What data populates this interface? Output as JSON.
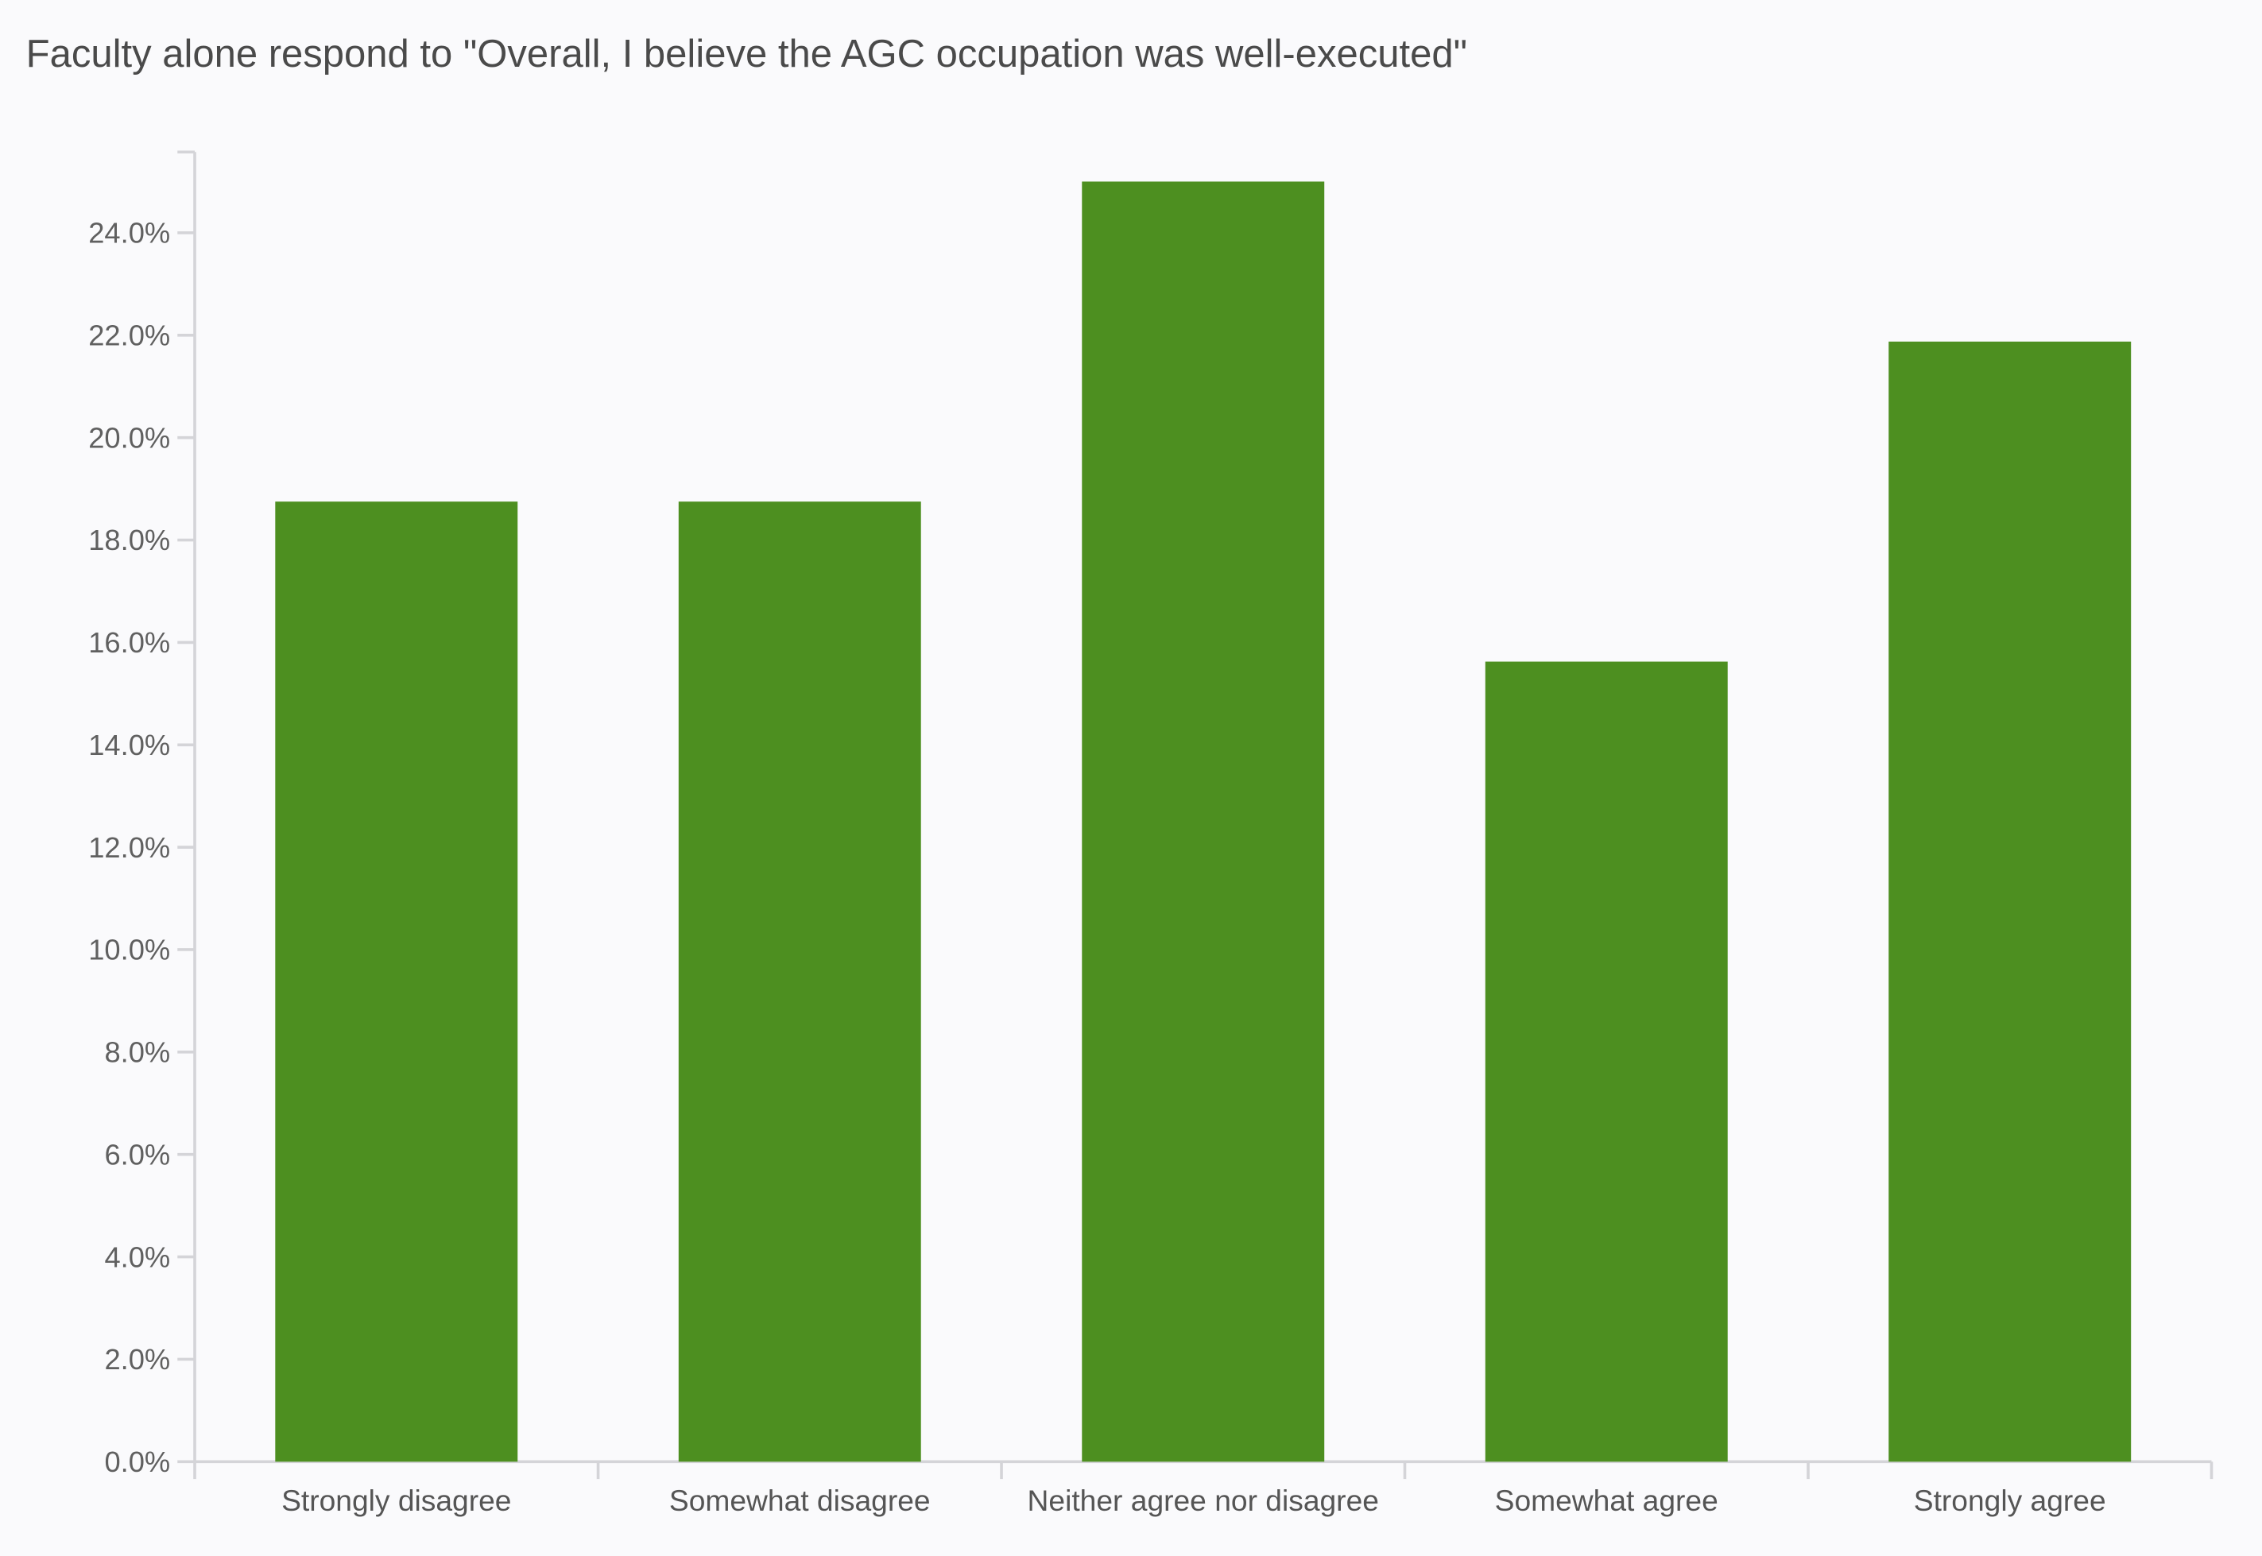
{
  "chart_data": {
    "type": "bar",
    "title": "Faculty alone respond to \"Overall, I believe the AGC occupation was well-executed\"",
    "xlabel": "",
    "ylabel": "",
    "categories": [
      "Strongly disagree",
      "Somewhat disagree",
      "Neither agree nor disagree",
      "Somewhat agree",
      "Strongly agree"
    ],
    "values": [
      18.75,
      18.75,
      25.0,
      15.625,
      21.875
    ],
    "ylim": [
      0,
      25.5
    ],
    "yticks": [
      "0.0%",
      "2.0%",
      "4.0%",
      "6.0%",
      "8.0%",
      "10.0%",
      "12.0%",
      "14.0%",
      "16.0%",
      "18.0%",
      "20.0%",
      "22.0%",
      "24.0%"
    ],
    "grid": false,
    "bar_color": "#4d8f20",
    "axis_color": "#d4d4d8"
  }
}
